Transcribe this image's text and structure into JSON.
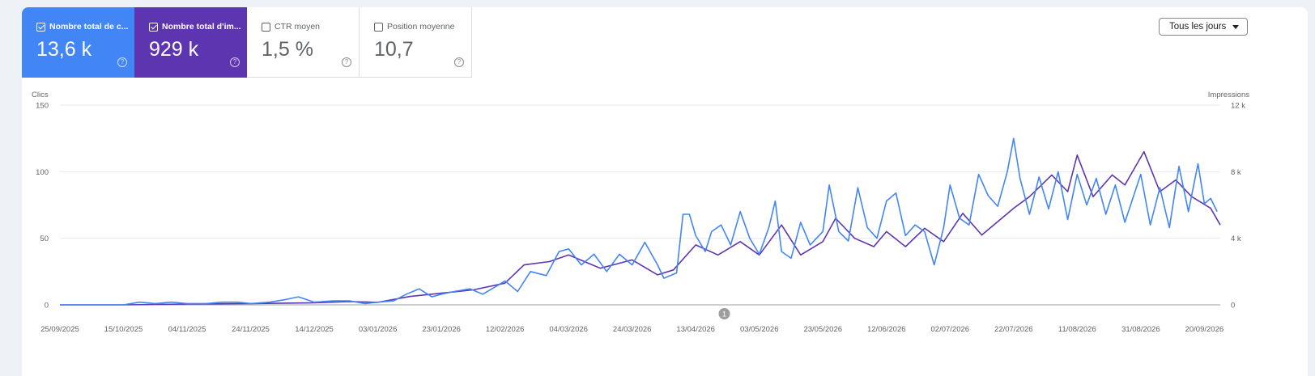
{
  "metrics": {
    "clicks": {
      "label": "Nombre total de c...",
      "value": "13,6 k",
      "checked": true,
      "color": "#4285f4"
    },
    "impressions": {
      "label": "Nombre total d'im...",
      "value": "929 k",
      "checked": true,
      "color": "#5e35b1"
    },
    "ctr": {
      "label": "CTR moyen",
      "value": "1,5 %",
      "checked": false
    },
    "position": {
      "label": "Position moyenne",
      "value": "10,7",
      "checked": false
    }
  },
  "help_icon": "?",
  "date_filter": {
    "label": "Tous les jours"
  },
  "annotation": {
    "label": "1",
    "date": "2026-04-22"
  },
  "chart_data": {
    "type": "line",
    "x_start": "2025-09-25",
    "x_end": "2026-09-25",
    "y_left": {
      "label": "Clics",
      "ticks": [
        "0",
        "50",
        "100",
        "150"
      ],
      "range": [
        0,
        150
      ]
    },
    "y_right": {
      "label": "Impressions",
      "ticks": [
        "0",
        "4 k",
        "8 k",
        "12 k"
      ],
      "range": [
        0,
        12000
      ]
    },
    "x_ticks": [
      "25/09/2025",
      "15/10/2025",
      "04/11/2025",
      "24/11/2025",
      "14/12/2025",
      "03/01/2026",
      "23/01/2026",
      "12/02/2026",
      "04/03/2026",
      "24/03/2026",
      "13/04/2026",
      "03/05/2026",
      "23/05/2026",
      "12/06/2026",
      "02/07/2026",
      "22/07/2026",
      "11/08/2026",
      "31/08/2026",
      "20/09/2026"
    ],
    "grid": true,
    "legend": "top",
    "series": [
      {
        "name": "Nombre total de clics",
        "axis": "left",
        "color": "#4285f4",
        "points": [
          [
            "2025-09-25",
            0
          ],
          [
            "2025-10-05",
            0
          ],
          [
            "2025-10-15",
            0
          ],
          [
            "2025-10-20",
            2
          ],
          [
            "2025-10-25",
            1
          ],
          [
            "2025-10-30",
            2
          ],
          [
            "2025-11-04",
            1
          ],
          [
            "2025-11-10",
            1
          ],
          [
            "2025-11-15",
            2
          ],
          [
            "2025-11-20",
            2
          ],
          [
            "2025-11-24",
            1
          ],
          [
            "2025-11-30",
            2
          ],
          [
            "2025-12-05",
            4
          ],
          [
            "2025-12-09",
            6
          ],
          [
            "2025-12-14",
            2
          ],
          [
            "2025-12-20",
            3
          ],
          [
            "2025-12-25",
            3
          ],
          [
            "2025-12-30",
            1
          ],
          [
            "2026-01-03",
            2
          ],
          [
            "2026-01-08",
            3
          ],
          [
            "2026-01-12",
            8
          ],
          [
            "2026-01-16",
            12
          ],
          [
            "2026-01-20",
            6
          ],
          [
            "2026-01-23",
            8
          ],
          [
            "2026-01-27",
            10
          ],
          [
            "2026-02-01",
            12
          ],
          [
            "2026-02-05",
            8
          ],
          [
            "2026-02-10",
            15
          ],
          [
            "2026-02-12",
            18
          ],
          [
            "2026-02-16",
            10
          ],
          [
            "2026-02-20",
            25
          ],
          [
            "2026-02-25",
            22
          ],
          [
            "2026-03-01",
            40
          ],
          [
            "2026-03-04",
            42
          ],
          [
            "2026-03-08",
            30
          ],
          [
            "2026-03-12",
            38
          ],
          [
            "2026-03-16",
            25
          ],
          [
            "2026-03-20",
            38
          ],
          [
            "2026-03-24",
            30
          ],
          [
            "2026-03-28",
            47
          ],
          [
            "2026-04-01",
            30
          ],
          [
            "2026-04-03",
            20
          ],
          [
            "2026-04-07",
            24
          ],
          [
            "2026-04-09",
            68
          ],
          [
            "2026-04-11",
            68
          ],
          [
            "2026-04-13",
            52
          ],
          [
            "2026-04-16",
            40
          ],
          [
            "2026-04-18",
            55
          ],
          [
            "2026-04-21",
            60
          ],
          [
            "2026-04-24",
            45
          ],
          [
            "2026-04-27",
            70
          ],
          [
            "2026-04-30",
            50
          ],
          [
            "2026-05-03",
            38
          ],
          [
            "2026-05-06",
            58
          ],
          [
            "2026-05-08",
            78
          ],
          [
            "2026-05-10",
            40
          ],
          [
            "2026-05-13",
            35
          ],
          [
            "2026-05-16",
            62
          ],
          [
            "2026-05-19",
            45
          ],
          [
            "2026-05-23",
            55
          ],
          [
            "2026-05-25",
            90
          ],
          [
            "2026-05-28",
            55
          ],
          [
            "2026-05-31",
            48
          ],
          [
            "2026-06-03",
            88
          ],
          [
            "2026-06-06",
            58
          ],
          [
            "2026-06-09",
            50
          ],
          [
            "2026-06-12",
            78
          ],
          [
            "2026-06-15",
            84
          ],
          [
            "2026-06-18",
            52
          ],
          [
            "2026-06-21",
            60
          ],
          [
            "2026-06-24",
            55
          ],
          [
            "2026-06-27",
            30
          ],
          [
            "2026-06-30",
            58
          ],
          [
            "2026-07-02",
            90
          ],
          [
            "2026-07-05",
            65
          ],
          [
            "2026-07-08",
            60
          ],
          [
            "2026-07-11",
            98
          ],
          [
            "2026-07-14",
            82
          ],
          [
            "2026-07-17",
            74
          ],
          [
            "2026-07-20",
            100
          ],
          [
            "2026-07-22",
            125
          ],
          [
            "2026-07-24",
            95
          ],
          [
            "2026-07-27",
            68
          ],
          [
            "2026-07-30",
            96
          ],
          [
            "2026-08-02",
            72
          ],
          [
            "2026-08-05",
            100
          ],
          [
            "2026-08-08",
            64
          ],
          [
            "2026-08-11",
            98
          ],
          [
            "2026-08-14",
            75
          ],
          [
            "2026-08-17",
            95
          ],
          [
            "2026-08-20",
            68
          ],
          [
            "2026-08-23",
            90
          ],
          [
            "2026-08-26",
            62
          ],
          [
            "2026-08-31",
            98
          ],
          [
            "2026-09-03",
            60
          ],
          [
            "2026-09-06",
            88
          ],
          [
            "2026-09-09",
            58
          ],
          [
            "2026-09-12",
            104
          ],
          [
            "2026-09-15",
            70
          ],
          [
            "2026-09-18",
            106
          ],
          [
            "2026-09-20",
            76
          ],
          [
            "2026-09-22",
            80
          ],
          [
            "2026-09-24",
            70
          ]
        ]
      },
      {
        "name": "Nombre total d'impressions",
        "axis": "right",
        "color": "#5e35b1",
        "points": [
          [
            "2025-09-25",
            0
          ],
          [
            "2025-10-15",
            0
          ],
          [
            "2025-11-04",
            50
          ],
          [
            "2025-11-24",
            80
          ],
          [
            "2025-12-14",
            120
          ],
          [
            "2025-12-25",
            200
          ],
          [
            "2026-01-03",
            150
          ],
          [
            "2026-01-13",
            500
          ],
          [
            "2026-01-23",
            700
          ],
          [
            "2026-02-02",
            900
          ],
          [
            "2026-02-12",
            1300
          ],
          [
            "2026-02-18",
            2400
          ],
          [
            "2026-02-26",
            2600
          ],
          [
            "2026-03-04",
            3000
          ],
          [
            "2026-03-14",
            2200
          ],
          [
            "2026-03-24",
            2700
          ],
          [
            "2026-04-01",
            1800
          ],
          [
            "2026-04-06",
            2100
          ],
          [
            "2026-04-13",
            3600
          ],
          [
            "2026-04-20",
            3000
          ],
          [
            "2026-04-27",
            3800
          ],
          [
            "2026-05-03",
            3000
          ],
          [
            "2026-05-10",
            4800
          ],
          [
            "2026-05-16",
            3000
          ],
          [
            "2026-05-23",
            3800
          ],
          [
            "2026-05-27",
            5200
          ],
          [
            "2026-06-02",
            4000
          ],
          [
            "2026-06-08",
            3500
          ],
          [
            "2026-06-12",
            4400
          ],
          [
            "2026-06-18",
            3500
          ],
          [
            "2026-06-24",
            4600
          ],
          [
            "2026-06-30",
            3800
          ],
          [
            "2026-07-06",
            5500
          ],
          [
            "2026-07-12",
            4200
          ],
          [
            "2026-07-22",
            5800
          ],
          [
            "2026-07-27",
            6500
          ],
          [
            "2026-08-03",
            7800
          ],
          [
            "2026-08-08",
            6800
          ],
          [
            "2026-08-11",
            9000
          ],
          [
            "2026-08-16",
            6500
          ],
          [
            "2026-08-22",
            7800
          ],
          [
            "2026-08-26",
            7200
          ],
          [
            "2026-09-01",
            9200
          ],
          [
            "2026-09-06",
            6800
          ],
          [
            "2026-09-11",
            7500
          ],
          [
            "2026-09-16",
            6500
          ],
          [
            "2026-09-22",
            5800
          ],
          [
            "2026-09-25",
            4800
          ]
        ]
      }
    ]
  }
}
